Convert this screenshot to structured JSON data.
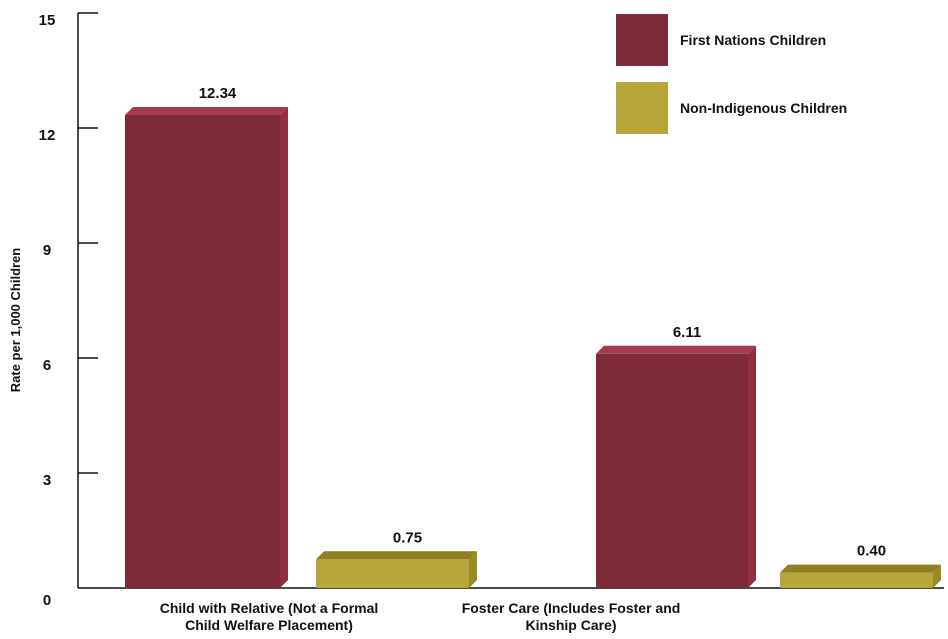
{
  "chart_data": {
    "type": "bar",
    "title": "",
    "xlabel": "",
    "ylabel": "Rate per 1,000 Children",
    "ylim": [
      0,
      15
    ],
    "yticks": [
      0,
      3,
      6,
      9,
      12,
      15
    ],
    "categories": [
      [
        "Child with Relative (Not a Formal",
        "Child Welfare Placement)"
      ],
      [
        "Foster Care (Includes Foster and",
        "Kinship Care)"
      ]
    ],
    "series": [
      {
        "name": "First Nations Children",
        "values": [
          12.34,
          6.11
        ],
        "labels": [
          "12.34",
          "6.11"
        ],
        "color": "#7e2a38",
        "top_color": "#a53a4c",
        "side_color": "#8f3040"
      },
      {
        "name": "Non-Indigenous Children",
        "values": [
          0.75,
          0.4
        ],
        "labels": [
          "0.75",
          "0.40"
        ],
        "color": "#b8a63a",
        "top_color": "#8f7f1e",
        "side_color": "#9a8a22"
      }
    ],
    "legend_position": "top-right",
    "grid": false
  }
}
